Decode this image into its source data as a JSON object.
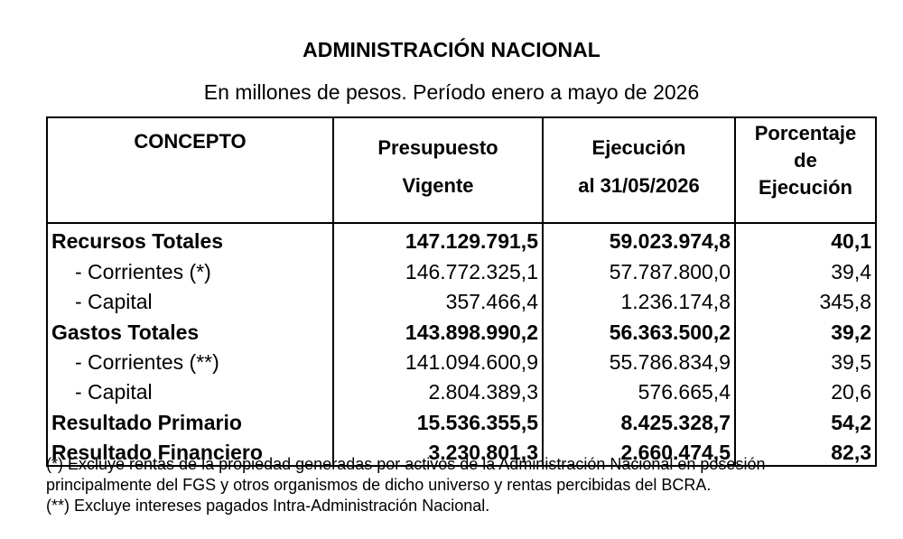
{
  "title": "ADMINISTRACIÓN NACIONAL",
  "subtitle": "En millones de pesos. Período enero a mayo de 2026",
  "table": {
    "headers": {
      "concepto": "CONCEPTO",
      "presupuesto_l1": "Presupuesto",
      "presupuesto_l2": "Vigente",
      "ejecucion_l1": "Ejecución",
      "ejecucion_l2": "al 31/05/2026",
      "porcentaje_l1": "Porcentaje",
      "porcentaje_l2": "de",
      "porcentaje_l3": "Ejecución"
    },
    "rows": [
      {
        "concepto": "Recursos Totales",
        "presupuesto": "147.129.791,5",
        "ejecucion": "59.023.974,8",
        "porcentaje": "40,1"
      },
      {
        "concepto": "- Corrientes (*)",
        "presupuesto": "146.772.325,1",
        "ejecucion": "57.787.800,0",
        "porcentaje": "39,4"
      },
      {
        "concepto": "- Capital",
        "presupuesto": "357.466,4",
        "ejecucion": "1.236.174,8",
        "porcentaje": "345,8"
      },
      {
        "concepto": "Gastos Totales",
        "presupuesto": "143.898.990,2",
        "ejecucion": "56.363.500,2",
        "porcentaje": "39,2"
      },
      {
        "concepto": "- Corrientes (**)",
        "presupuesto": "141.094.600,9",
        "ejecucion": "55.786.834,9",
        "porcentaje": "39,5"
      },
      {
        "concepto": "- Capital",
        "presupuesto": "2.804.389,3",
        "ejecucion": "576.665,4",
        "porcentaje": "20,6"
      },
      {
        "concepto": "Resultado Primario",
        "presupuesto": "15.536.355,5",
        "ejecucion": "8.425.328,7",
        "porcentaje": "54,2"
      },
      {
        "concepto": "Resultado Financiero",
        "presupuesto": "3.230.801,3",
        "ejecucion": "2.660.474,5",
        "porcentaje": "82,3"
      }
    ]
  },
  "footnotes": {
    "note1_line1": "(*) Excluye rentas de la propiedad generadas por activos de la Administración Nacional en posesión",
    "note1_line2": "principalmente del FGS y otros organismos de dicho universo y rentas percibidas del BCRA.",
    "note2": "(**) Excluye intereses pagados Intra-Administración Nacional."
  }
}
